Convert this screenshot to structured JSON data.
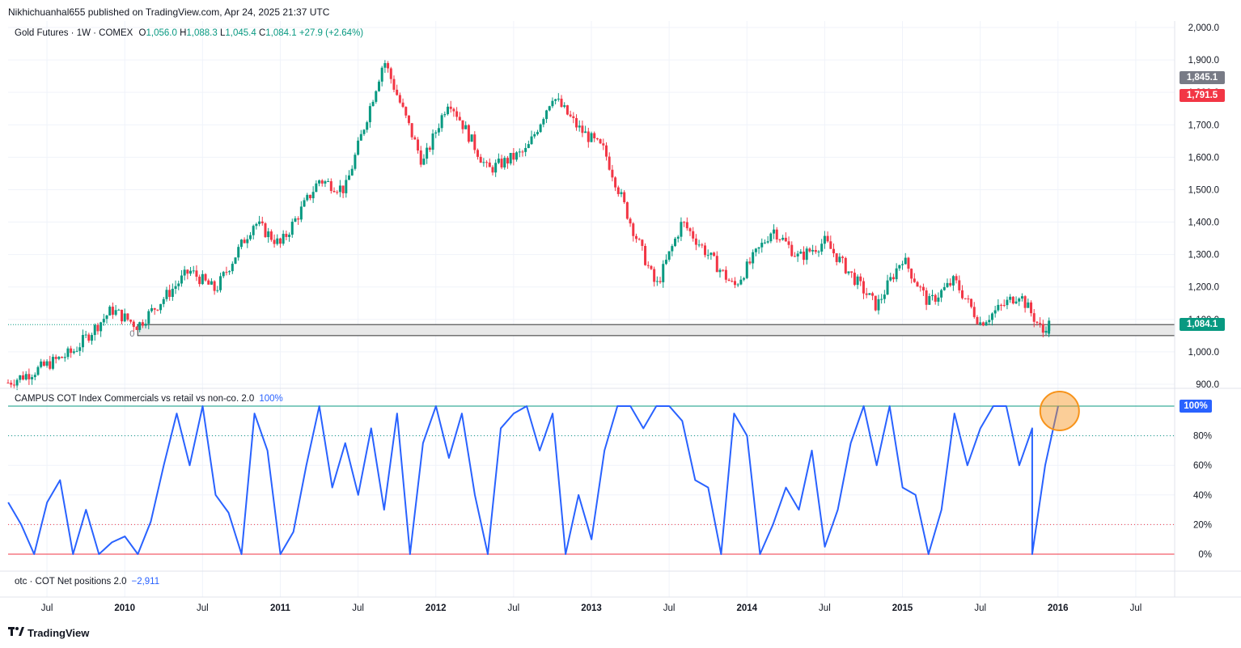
{
  "publisher_line": "Nikhichuanhal655 published on TradingView.com, Apr 24, 2025 21:37 UTC",
  "legend": {
    "symbol": "Gold Futures · 1W · COMEX",
    "o_label": "O",
    "o": "1,056.0",
    "h_label": "H",
    "h": "1,088.3",
    "l_label": "L",
    "l": "1,045.4",
    "c_label": "C",
    "c": "1,084.1",
    "change": "+27.9 (+2.64%)"
  },
  "indicator_legend": {
    "name": "CAMPUS COT Index Commercials vs retail vs non-co. 2.0",
    "value": "100%"
  },
  "otc_legend": {
    "name": "otc · COT Net positions  2.0",
    "value": "−2,911"
  },
  "brand": "TradingView",
  "price_tags": [
    {
      "label": "1,845.1",
      "value": 1845.1,
      "color": "#787b86"
    },
    {
      "label": "1,791.5",
      "value": 1791.5,
      "color": "#f23645"
    },
    {
      "label": "1,084.1",
      "value": 1084.1,
      "color": "#089981"
    }
  ],
  "indicator_tag": {
    "label": "100%",
    "value": 100,
    "color": "#2962ff"
  },
  "zone_label": "0",
  "colors": {
    "up": "#089981",
    "down": "#f23645",
    "line": "#2962ff",
    "grid": "#f0f3fa",
    "highlight": "#f7931a"
  },
  "chart_data": [
    {
      "type": "candlestick",
      "title": "Gold Futures · 1W · COMEX",
      "ylim": [
        900,
        2000
      ],
      "y_ticks": [
        "900.0",
        "1,000.0",
        "1,100.0",
        "1,200.0",
        "1,300.0",
        "1,400.0",
        "1,500.0",
        "1,600.0",
        "1,700.0",
        "1,800.0",
        "1,900.0",
        "2,000.0"
      ],
      "x_ticks": [
        "Jul",
        "2010",
        "Jul",
        "2011",
        "Jul",
        "2012",
        "Jul",
        "2013",
        "Jul",
        "2014",
        "Jul",
        "2015",
        "Jul",
        "2016",
        "Jul"
      ],
      "x_range_months": [
        "2009-04",
        "2016-10"
      ],
      "close_path": [
        [
          "2009-04",
          905
        ],
        [
          "2009-06",
          940
        ],
        [
          "2009-09",
          1000
        ],
        [
          "2009-12",
          1130
        ],
        [
          "2010-02",
          1080
        ],
        [
          "2010-06",
          1250
        ],
        [
          "2010-08",
          1190
        ],
        [
          "2010-11",
          1400
        ],
        [
          "2011-01",
          1330
        ],
        [
          "2011-04",
          1530
        ],
        [
          "2011-06",
          1500
        ],
        [
          "2011-09",
          1900
        ],
        [
          "2011-12",
          1580
        ],
        [
          "2012-02",
          1780
        ],
        [
          "2012-05",
          1560
        ],
        [
          "2012-08",
          1620
        ],
        [
          "2012-10",
          1790
        ],
        [
          "2012-12",
          1690
        ],
        [
          "2013-02",
          1620
        ],
        [
          "2013-04",
          1400
        ],
        [
          "2013-06",
          1200
        ],
        [
          "2013-08",
          1400
        ],
        [
          "2013-12",
          1200
        ],
        [
          "2014-03",
          1380
        ],
        [
          "2014-05",
          1290
        ],
        [
          "2014-07",
          1340
        ],
        [
          "2014-11",
          1140
        ],
        [
          "2015-01",
          1290
        ],
        [
          "2015-03",
          1150
        ],
        [
          "2015-05",
          1220
        ],
        [
          "2015-07",
          1090
        ],
        [
          "2015-10",
          1180
        ],
        [
          "2015-12",
          1050
        ],
        [
          "2015-12",
          1084.1
        ]
      ],
      "last": {
        "open": 1056.0,
        "high": 1088.3,
        "low": 1045.4,
        "close": 1084.1,
        "change": 27.9,
        "change_pct": 2.64
      },
      "zone": {
        "low": 1050,
        "high": 1084.1,
        "from": "2010-02"
      }
    },
    {
      "type": "line",
      "title": "CAMPUS COT Index Commercials vs retail vs non-co. 2.0",
      "ylim": [
        0,
        100
      ],
      "y_ticks": [
        "0%",
        "20%",
        "40%",
        "60%",
        "80%",
        "100%"
      ],
      "levels": [
        100,
        80,
        20,
        0
      ],
      "series": [
        {
          "name": "CAMPUS COT Index Commercials vs retail vs non-co. 2.0",
          "points": [
            [
              "2009-04",
              35
            ],
            [
              "2009-05",
              20
            ],
            [
              "2009-06",
              0
            ],
            [
              "2009-07",
              35
            ],
            [
              "2009-08",
              50
            ],
            [
              "2009-09",
              0
            ],
            [
              "2009-10",
              30
            ],
            [
              "2009-11",
              0
            ],
            [
              "2009-12",
              8
            ],
            [
              "2010-01",
              12
            ],
            [
              "2010-02",
              0
            ],
            [
              "2010-03",
              22
            ],
            [
              "2010-04",
              60
            ],
            [
              "2010-05",
              95
            ],
            [
              "2010-06",
              60
            ],
            [
              "2010-07",
              100
            ],
            [
              "2010-08",
              40
            ],
            [
              "2010-09",
              28
            ],
            [
              "2010-10",
              0
            ],
            [
              "2010-11",
              95
            ],
            [
              "2010-12",
              70
            ],
            [
              "2011-01",
              0
            ],
            [
              "2011-02",
              15
            ],
            [
              "2011-03",
              60
            ],
            [
              "2011-04",
              100
            ],
            [
              "2011-05",
              45
            ],
            [
              "2011-06",
              75
            ],
            [
              "2011-07",
              40
            ],
            [
              "2011-08",
              85
            ],
            [
              "2011-09",
              30
            ],
            [
              "2011-10",
              95
            ],
            [
              "2011-11",
              0
            ],
            [
              "2011-12",
              75
            ],
            [
              "2012-01",
              100
            ],
            [
              "2012-02",
              65
            ],
            [
              "2012-03",
              95
            ],
            [
              "2012-04",
              40
            ],
            [
              "2012-05",
              0
            ],
            [
              "2012-06",
              85
            ],
            [
              "2012-07",
              95
            ],
            [
              "2012-08",
              100
            ],
            [
              "2012-09",
              70
            ],
            [
              "2012-10",
              95
            ],
            [
              "2012-11",
              0
            ],
            [
              "2012-12",
              40
            ],
            [
              "2013-01",
              10
            ],
            [
              "2013-02",
              70
            ],
            [
              "2013-03",
              100
            ],
            [
              "2013-04",
              100
            ],
            [
              "2013-05",
              85
            ],
            [
              "2013-06",
              100
            ],
            [
              "2013-07",
              100
            ],
            [
              "2013-08",
              90
            ],
            [
              "2013-09",
              50
            ],
            [
              "2013-10",
              45
            ],
            [
              "2013-11",
              0
            ],
            [
              "2013-12",
              95
            ],
            [
              "2014-01",
              80
            ],
            [
              "2014-02",
              0
            ],
            [
              "2014-03",
              20
            ],
            [
              "2014-04",
              45
            ],
            [
              "2014-05",
              30
            ],
            [
              "2014-06",
              70
            ],
            [
              "2014-07",
              5
            ],
            [
              "2014-08",
              30
            ],
            [
              "2014-09",
              75
            ],
            [
              "2014-10",
              100
            ],
            [
              "2014-11",
              60
            ],
            [
              "2014-12",
              100
            ],
            [
              "2015-01",
              45
            ],
            [
              "2015-02",
              40
            ],
            [
              "2015-03",
              0
            ],
            [
              "2015-04",
              30
            ],
            [
              "2015-05",
              95
            ],
            [
              "2015-06",
              60
            ],
            [
              "2015-07",
              85
            ],
            [
              "2015-08",
              100
            ],
            [
              "2015-09",
              100
            ],
            [
              "2015-10",
              60
            ],
            [
              "2015-11",
              85
            ],
            [
              "2015-11",
              0
            ],
            [
              "2015-12",
              60
            ],
            [
              "2016-01",
              100
            ]
          ]
        }
      ]
    }
  ]
}
